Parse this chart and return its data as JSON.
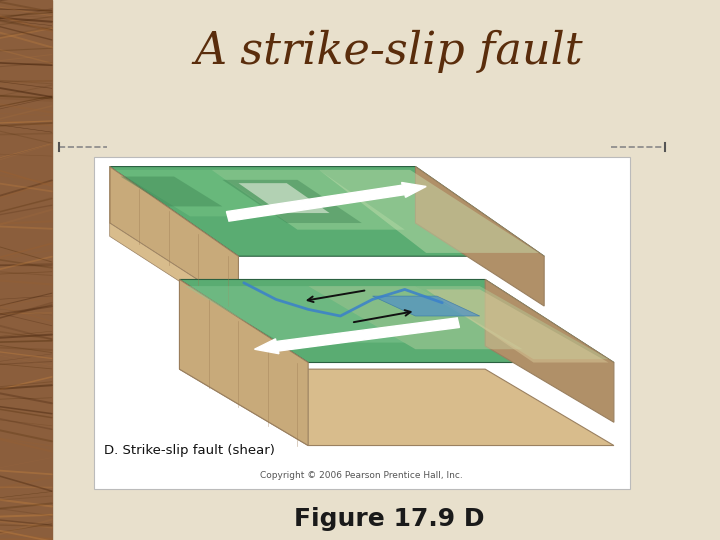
{
  "title": "A strike-slip fault",
  "title_color": "#5a2d0c",
  "title_fontsize": 32,
  "title_style": "italic",
  "title_family": "serif",
  "caption": "Figure 17.9 D",
  "caption_fontsize": 18,
  "caption_color": "#1a1a1a",
  "caption_bold": true,
  "bg_color": "#e8e0cc",
  "figure_label_text": "D. Strike-slip fault (shear)",
  "copyright_text": "Copyright © 2006 Pearson Prentice Hall, Inc."
}
